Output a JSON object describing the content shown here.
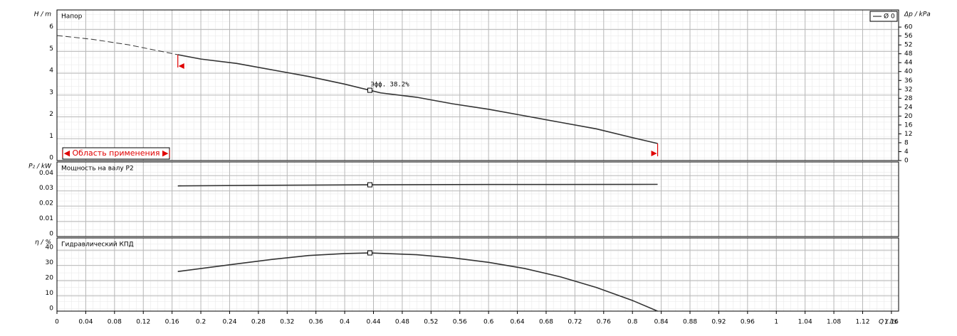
{
  "chart_data": [
    {
      "type": "line",
      "title": "Напор",
      "ylabel": "H / m",
      "y2label": "Δp / kPa",
      "x": [
        0,
        0.05,
        0.1,
        0.168,
        0.2,
        0.25,
        0.3,
        0.35,
        0.4,
        0.435,
        0.45,
        0.5,
        0.55,
        0.6,
        0.65,
        0.7,
        0.75,
        0.8,
        0.835
      ],
      "series": [
        {
          "name": "Ø 0",
          "color": "#333333",
          "values": [
            null,
            null,
            null,
            4.85,
            4.65,
            4.45,
            4.15,
            3.85,
            3.5,
            3.22,
            3.1,
            2.9,
            2.6,
            2.35,
            2.05,
            1.75,
            1.45,
            1.05,
            0.78
          ]
        },
        {
          "color": "#333333",
          "dash": true,
          "values": [
            5.73,
            5.55,
            5.3,
            4.85,
            null,
            null,
            null,
            null,
            null,
            null,
            null,
            null,
            null,
            null,
            null,
            null,
            null,
            null,
            null
          ]
        }
      ],
      "xlim": [
        0,
        1.17
      ],
      "ylim": [
        0,
        6.9
      ],
      "yticks": [
        0,
        1,
        2,
        3,
        4,
        5,
        6
      ],
      "y2lim": [
        0,
        67.7
      ],
      "y2ticks": [
        0,
        4,
        8,
        12,
        16,
        20,
        24,
        28,
        32,
        36,
        40,
        44,
        48,
        52,
        56,
        60
      ],
      "range": [
        0.168,
        0.835
      ],
      "range_label": "|◀ Область применения ▶|",
      "operating_point": {
        "x": 0.435,
        "y": 3.22,
        "label": "Эфф. 38.2%"
      },
      "grid": true,
      "legend": "top-right"
    },
    {
      "type": "line",
      "title": "Мощность на валу P2",
      "ylabel": "P₂ / kW",
      "x": [
        0.168,
        0.3,
        0.435,
        0.6,
        0.835
      ],
      "series": [
        {
          "color": "#333333",
          "values": [
            0.0333,
            0.0337,
            0.034,
            0.0342,
            0.0343
          ]
        }
      ],
      "xlim": [
        0,
        1.17
      ],
      "ylim": [
        0,
        0.049
      ],
      "yticks": [
        0,
        0.01,
        0.02,
        0.03,
        0.04
      ],
      "operating_point": {
        "x": 0.435,
        "y": 0.034
      },
      "grid": true
    },
    {
      "type": "line",
      "title": "Гидравлический КПД",
      "ylabel": "η / %",
      "xlabel": "Q / l/s",
      "x": [
        0.168,
        0.25,
        0.3,
        0.35,
        0.4,
        0.435,
        0.5,
        0.55,
        0.6,
        0.65,
        0.7,
        0.75,
        0.8,
        0.835
      ],
      "series": [
        {
          "color": "#333333",
          "values": [
            26,
            31,
            34,
            36.5,
            37.8,
            38.2,
            37,
            35,
            32,
            28,
            22.5,
            15.5,
            7,
            0
          ]
        }
      ],
      "xlim": [
        0,
        1.17
      ],
      "ylim": [
        0,
        48
      ],
      "yticks": [
        0,
        10,
        20,
        30,
        40
      ],
      "xticks": [
        0,
        0.04,
        0.08,
        0.12,
        0.16,
        0.2,
        0.24,
        0.28,
        0.32,
        0.36,
        0.4,
        0.44,
        0.48,
        0.52,
        0.56,
        0.6,
        0.64,
        0.68,
        0.72,
        0.76,
        0.8,
        0.84,
        0.88,
        0.92,
        0.96,
        1,
        1.04,
        1.08,
        1.12,
        1.16
      ],
      "operating_point": {
        "x": 0.435,
        "y": 38.2
      },
      "grid": true
    }
  ]
}
